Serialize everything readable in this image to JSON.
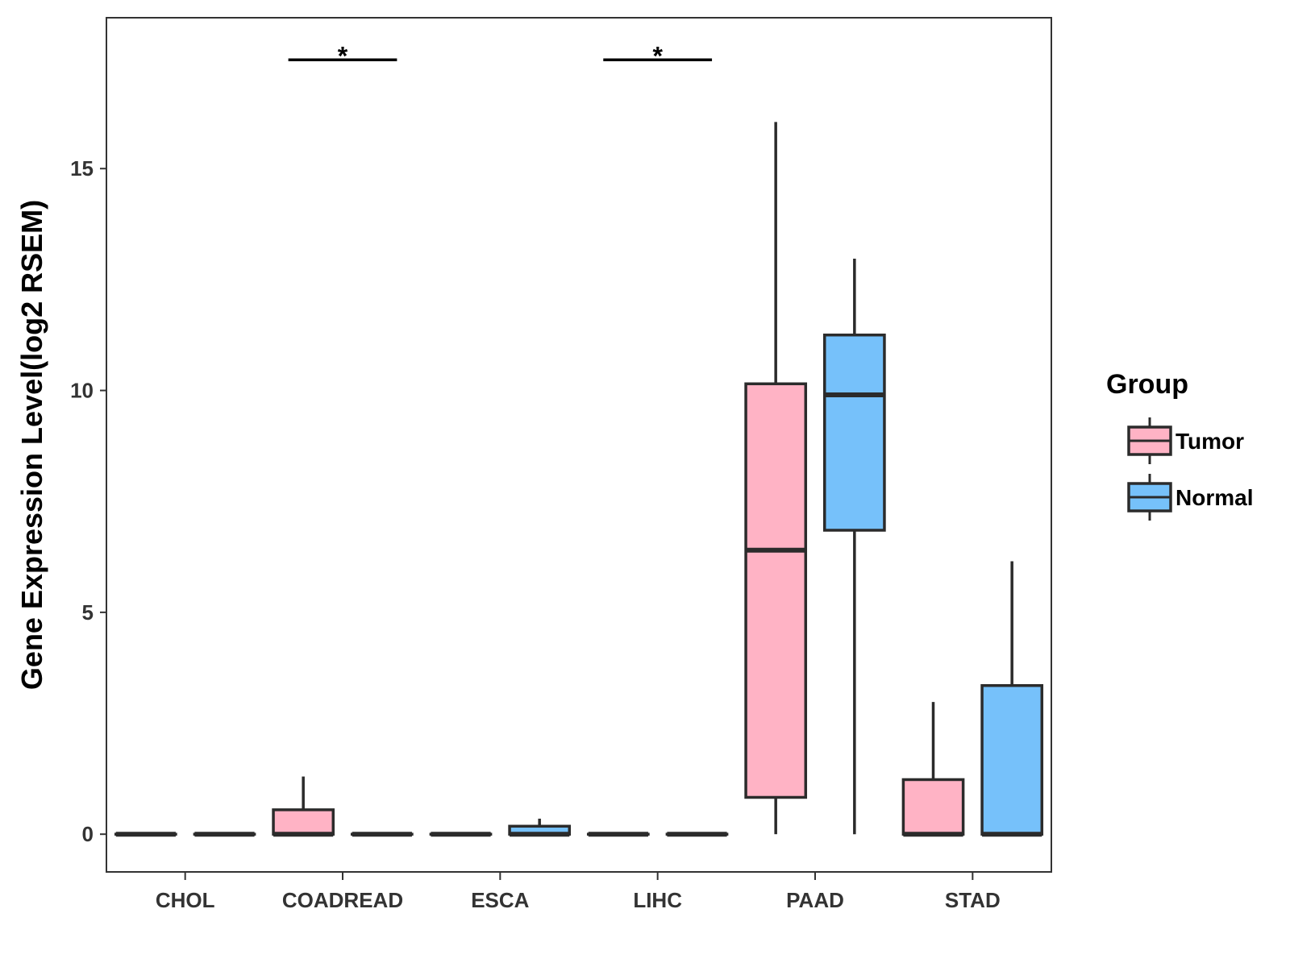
{
  "chart_data": {
    "type": "box",
    "ylabel": "Gene Expression Level(log2 RSEM)",
    "xlabel": "",
    "ylim": [
      -0.85,
      18.4
    ],
    "yticks": [
      0,
      5,
      10,
      15
    ],
    "grid": false,
    "categories": [
      "CHOL",
      "COADREAD",
      "ESCA",
      "LIHC",
      "PAAD",
      "STAD"
    ],
    "legend": {
      "title": "Group",
      "position": "right",
      "entries": [
        {
          "name": "Tumor",
          "color": "#FFB3C5"
        },
        {
          "name": "Normal",
          "color": "#76C1FA"
        }
      ]
    },
    "series": [
      {
        "name": "Tumor",
        "color": "#FFB3C5",
        "boxes": [
          {
            "category": "CHOL",
            "min": 0,
            "q1": 0,
            "median": 0,
            "q3": 0,
            "max": 0
          },
          {
            "category": "COADREAD",
            "min": 0,
            "q1": 0,
            "median": 0,
            "q3": 0.55,
            "max": 1.3
          },
          {
            "category": "ESCA",
            "min": 0,
            "q1": 0,
            "median": 0,
            "q3": 0,
            "max": 0
          },
          {
            "category": "LIHC",
            "min": 0,
            "q1": 0,
            "median": 0,
            "q3": 0,
            "max": 0
          },
          {
            "category": "PAAD",
            "min": 0,
            "q1": 0.83,
            "median": 6.4,
            "q3": 10.15,
            "max": 16.05
          },
          {
            "category": "STAD",
            "min": 0,
            "q1": 0,
            "median": 0,
            "q3": 1.23,
            "max": 2.98
          }
        ]
      },
      {
        "name": "Normal",
        "color": "#76C1FA",
        "boxes": [
          {
            "category": "CHOL",
            "min": 0,
            "q1": 0,
            "median": 0,
            "q3": 0,
            "max": 0
          },
          {
            "category": "COADREAD",
            "min": 0,
            "q1": 0,
            "median": 0,
            "q3": 0,
            "max": 0
          },
          {
            "category": "ESCA",
            "min": 0,
            "q1": 0,
            "median": 0,
            "q3": 0.18,
            "max": 0.35
          },
          {
            "category": "LIHC",
            "min": 0,
            "q1": 0,
            "median": 0,
            "q3": 0,
            "max": 0
          },
          {
            "category": "PAAD",
            "min": 0,
            "q1": 6.85,
            "median": 9.9,
            "q3": 11.25,
            "max": 12.97
          },
          {
            "category": "STAD",
            "min": 0,
            "q1": 0,
            "median": 0,
            "q3": 3.35,
            "max": 6.15
          }
        ]
      }
    ],
    "annotations": [
      {
        "category": "COADREAD",
        "label": "*",
        "y": 17.45
      },
      {
        "category": "LIHC",
        "label": "*",
        "y": 17.45
      }
    ]
  }
}
